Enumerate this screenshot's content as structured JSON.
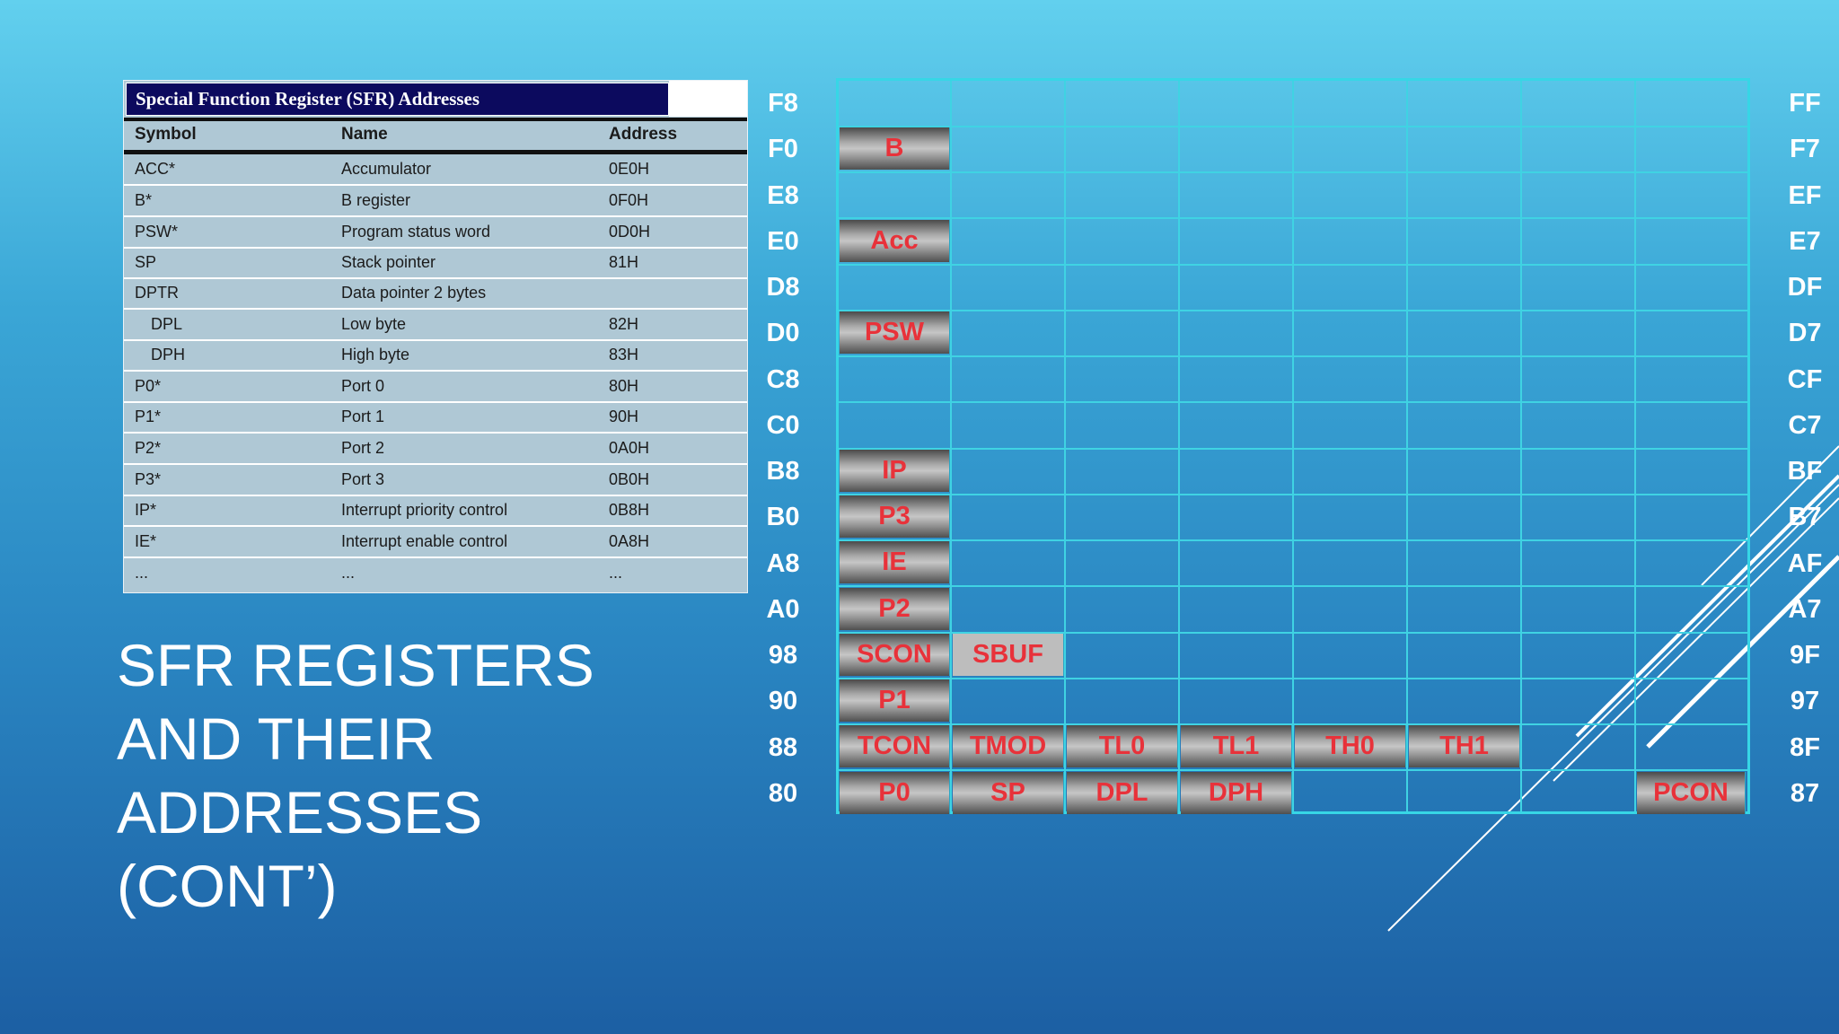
{
  "table": {
    "title": "Special Function Register (SFR) Addresses",
    "headers": {
      "symbol": "Symbol",
      "name": "Name",
      "address": "Address"
    },
    "rows": [
      {
        "symbol": "ACC*",
        "name": "Accumulator",
        "address": "0E0H"
      },
      {
        "symbol": "B*",
        "name": "B register",
        "address": "0F0H"
      },
      {
        "symbol": "PSW*",
        "name": "Program status word",
        "address": "0D0H"
      },
      {
        "symbol": "SP",
        "name": "Stack pointer",
        "address": "81H"
      },
      {
        "symbol": "DPTR",
        "name": "Data pointer 2 bytes",
        "address": ""
      },
      {
        "symbol": "DPL",
        "name": "Low byte",
        "address": "82H"
      },
      {
        "symbol": "DPH",
        "name": "High byte",
        "address": "83H"
      },
      {
        "symbol": "P0*",
        "name": "Port 0",
        "address": "80H"
      },
      {
        "symbol": "P1*",
        "name": "Port 1",
        "address": "90H"
      },
      {
        "symbol": "P2*",
        "name": "Port 2",
        "address": "0A0H"
      },
      {
        "symbol": "P3*",
        "name": "Port 3",
        "address": "0B0H"
      },
      {
        "symbol": "IP*",
        "name": "Interrupt priority control",
        "address": "0B8H"
      },
      {
        "symbol": "IE*",
        "name": "Interrupt enable control",
        "address": "0A8H"
      },
      {
        "symbol": "...",
        "name": "...",
        "address": "..."
      }
    ]
  },
  "slide_title": [
    "SFR REGISTERS",
    "AND THEIR",
    "ADDRESSES",
    "(CONT’)"
  ],
  "sfr_map": {
    "left_labels": [
      "F8",
      "F0",
      "E8",
      "E0",
      "D8",
      "D0",
      "C8",
      "C0",
      "B8",
      "B0",
      "A8",
      "A0",
      "98",
      "90",
      "88",
      "80"
    ],
    "right_labels": [
      "FF",
      "F7",
      "EF",
      "E7",
      "DF",
      "D7",
      "CF",
      "C7",
      "BF",
      "B7",
      "AF",
      "A7",
      "9F",
      "97",
      "8F",
      "87"
    ],
    "row_B": [
      "B"
    ],
    "row_Acc": [
      "Acc"
    ],
    "row_PSW": [
      "PSW"
    ],
    "row_IP": [
      "IP"
    ],
    "row_P3": [
      "P3"
    ],
    "row_IE": [
      "IE"
    ],
    "row_P2": [
      "P2"
    ],
    "row_98": [
      "SCON",
      "SBUF"
    ],
    "row_P1": [
      "P1"
    ],
    "row_88": [
      "TCON",
      "TMOD",
      "TL0",
      "TL1",
      "TH0",
      "TH1"
    ],
    "row_80": [
      "P0",
      "SP",
      "DPL",
      "DPH",
      "PCON"
    ]
  },
  "colors": {
    "register_text": "#e8323a",
    "grid_line": "#3fd3e3",
    "title_bar": "#0c0a5e"
  }
}
